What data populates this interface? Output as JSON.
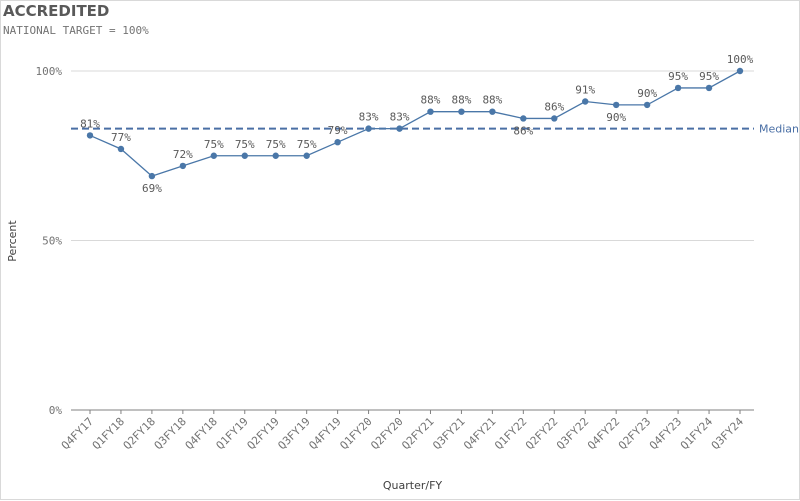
{
  "title": "ACCREDITED",
  "subtitle": "NATIONAL TARGET = 100%",
  "colors": {
    "line": "#4a77a8",
    "median": "#4a6fa5",
    "grid": "#d9d9d9",
    "axis": "#808080"
  },
  "chart_data": {
    "type": "line",
    "title": "ACCREDITED",
    "subtitle": "NATIONAL TARGET = 100%",
    "xlabel": "Quarter/FY",
    "ylabel": "Percent",
    "ylim": [
      0,
      100
    ],
    "yticks": [
      0,
      50,
      100
    ],
    "ytick_labels": [
      "0%",
      "50%",
      "100%"
    ],
    "grid": true,
    "categories": [
      "Q4FY17",
      "Q1FY18",
      "Q2FY18",
      "Q3FY18",
      "Q4FY18",
      "Q1FY19",
      "Q2FY19",
      "Q3FY19",
      "Q4FY19",
      "Q1FY20",
      "Q2FY20",
      "Q2FY21",
      "Q3FY21",
      "Q4FY21",
      "Q1FY22",
      "Q2FY22",
      "Q3FY22",
      "Q4FY22",
      "Q2FY23",
      "Q4FY23",
      "Q1FY24",
      "Q3FY24"
    ],
    "values": [
      81,
      77,
      69,
      72,
      75,
      75,
      75,
      75,
      79,
      83,
      83,
      88,
      88,
      88,
      86,
      86,
      91,
      90,
      90,
      95,
      95,
      100
    ],
    "data_labels": [
      "81%",
      "77%",
      "69%",
      "72%",
      "75%",
      "75%",
      "75%",
      "75%",
      "79%",
      "83%",
      "83%",
      "88%",
      "88%",
      "88%",
      "86%",
      "86%",
      "91%",
      "90%",
      "90%",
      "95%",
      "95%",
      "100%"
    ],
    "reference_lines": [
      {
        "label": "Median",
        "value": 83
      }
    ]
  }
}
